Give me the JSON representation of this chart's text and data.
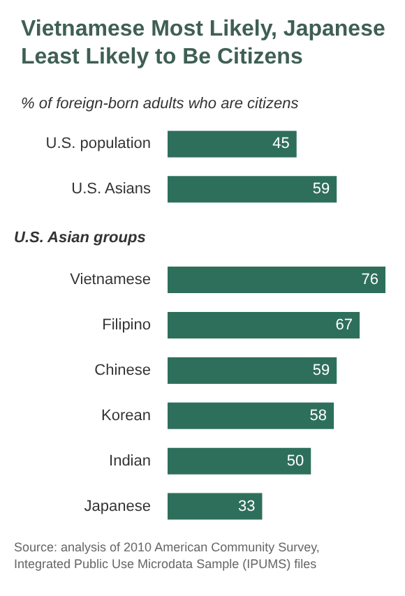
{
  "chart_data": {
    "type": "bar",
    "orientation": "horizontal",
    "title": "Vietnamese Most Likely, Japanese Least Likely to Be Citizens",
    "subtitle": "% of foreign-born adults who are citizens",
    "categories": [
      "U.S. population",
      "U.S. Asians",
      null,
      "Vietnamese",
      "Filipino",
      "Chinese",
      "Korean",
      "Indian",
      "Japanese"
    ],
    "values": [
      45,
      59,
      null,
      76,
      67,
      59,
      58,
      50,
      33
    ],
    "color": "#2e6f5c",
    "data_labels": true,
    "annotations": [
      "U.S. Asian groups",
      "Source: analysis of 2010 American Community Survey, Integrated Public Use Microdata Sample (IPUMS) files"
    ]
  }
}
